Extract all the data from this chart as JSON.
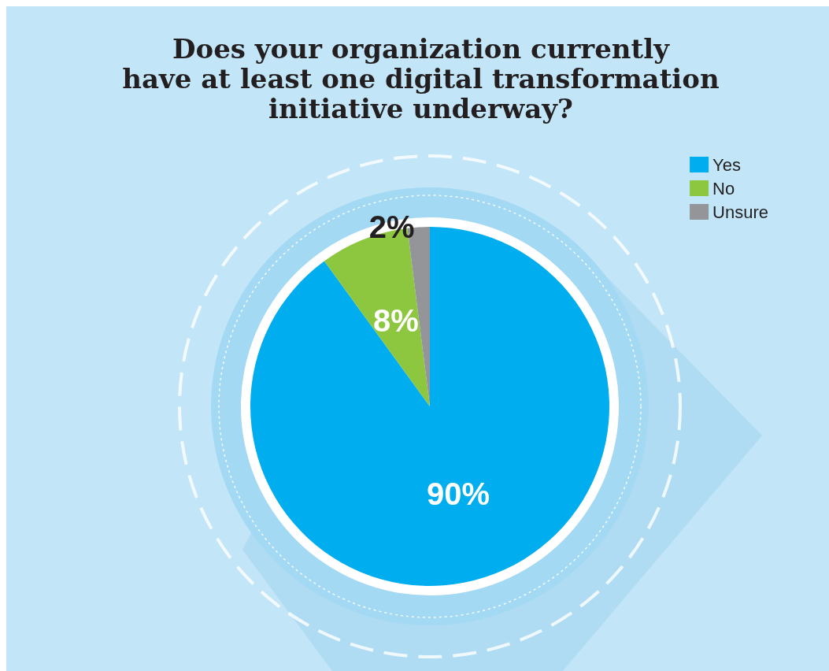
{
  "chart_data": {
    "type": "pie",
    "title": "Does your organization currently\nhave at least one digital transformation\ninitiative underway?",
    "categories": [
      "Yes",
      "No",
      "Unsure"
    ],
    "values": [
      90,
      8,
      2
    ],
    "colors": [
      "#00aeef",
      "#8dc63f",
      "#939598"
    ],
    "value_labels": [
      "90%",
      "8%",
      "2%"
    ],
    "legend": "top right"
  }
}
